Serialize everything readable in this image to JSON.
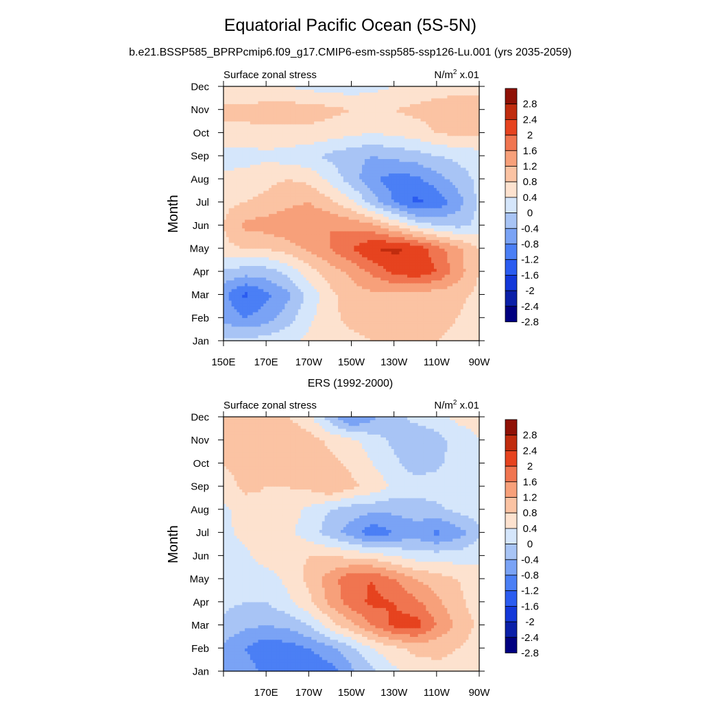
{
  "figure": {
    "title": "Equatorial Pacific Ocean (5S-5N)",
    "subtitle": "b.e21.BSSP585_BPRPcmip6.f09_g17.CMIP6-esm-ssp585-ssp126-Lu.001 (yrs 2035-2059)",
    "second_title": "ERS (1992-2000)"
  },
  "colors": {
    "background": "#ffffff",
    "frame": "#000000",
    "palette": [
      "#000080",
      "#0a1fa8",
      "#1338d9",
      "#2b5cf0",
      "#4b7ff5",
      "#7aa3f5",
      "#a8c4f5",
      "#d5e6fb",
      "#fde2cf",
      "#fbc3a3",
      "#f7a07a",
      "#f07550",
      "#e6431f",
      "#c02c0e",
      "#8f1106"
    ]
  },
  "chart_data": [
    {
      "type": "heatmap",
      "name": "model",
      "left_label": "Surface zonal stress",
      "right_label_main": "N/m",
      "right_label_sup": "2",
      "right_label_tail": " x.01",
      "ylabel": "Month",
      "xlabel": "",
      "x_ticks": [
        "150E",
        "170E",
        "170W",
        "150W",
        "130W",
        "110W",
        "90W"
      ],
      "x_tick_values": [
        150,
        170,
        190,
        210,
        230,
        250,
        270
      ],
      "y_ticks": [
        "Jan",
        "Feb",
        "Mar",
        "Apr",
        "May",
        "Jun",
        "Jul",
        "Aug",
        "Sep",
        "Oct",
        "Nov",
        "Dec"
      ],
      "xlim": [
        150,
        270
      ],
      "ylim": [
        0,
        11
      ],
      "colorbar_levels": [
        -2.8,
        -2.4,
        -2,
        -1.6,
        -1.2,
        -0.8,
        -0.4,
        0,
        0.4,
        0.8,
        1.2,
        1.6,
        2,
        2.4,
        2.8
      ],
      "colorbar_labels": [
        "-2.8",
        "-2.4",
        "-2",
        "-1.6",
        "-1.2",
        "-0.8",
        "-0.4",
        "0",
        "0.4",
        "0.8",
        "1.2",
        "1.6",
        "2",
        "2.4",
        "2.8"
      ],
      "x": [
        150,
        160,
        170,
        180,
        190,
        200,
        210,
        220,
        230,
        240,
        250,
        260,
        270
      ],
      "z": [
        [
          -0.3,
          -0.3,
          -0.2,
          -0.1,
          0.1,
          0.2,
          0.3,
          0.4,
          0.5,
          0.4,
          0.4,
          0.3,
          0.2
        ],
        [
          -0.9,
          -1.2,
          -1.0,
          -0.6,
          -0.1,
          0.3,
          0.5,
          0.6,
          0.6,
          0.5,
          0.5,
          0.4,
          0.2
        ],
        [
          -1.1,
          -1.7,
          -1.3,
          -0.9,
          -0.3,
          0.3,
          0.6,
          0.7,
          0.7,
          0.6,
          0.6,
          0.5,
          0.3
        ],
        [
          -0.5,
          -0.6,
          -0.6,
          -0.3,
          0.2,
          0.6,
          0.9,
          1.3,
          1.7,
          1.9,
          1.6,
          1.0,
          0.4
        ],
        [
          0.3,
          0.4,
          0.4,
          0.6,
          0.9,
          1.2,
          1.6,
          2.0,
          2.1,
          1.9,
          1.4,
          0.9,
          0.4
        ],
        [
          0.4,
          0.9,
          1.0,
          1.1,
          1.2,
          1.2,
          1.1,
          0.9,
          0.4,
          -0.1,
          -0.4,
          -0.5,
          -0.3
        ],
        [
          0.3,
          0.4,
          0.5,
          0.7,
          0.8,
          0.5,
          0.1,
          -0.6,
          -1.2,
          -1.7,
          -1.5,
          -1.0,
          -0.3
        ],
        [
          0.1,
          0.2,
          0.3,
          0.4,
          0.3,
          -0.1,
          -0.6,
          -1.1,
          -1.4,
          -1.3,
          -1.0,
          -0.6,
          -0.3
        ],
        [
          -0.2,
          -0.2,
          -0.1,
          -0.2,
          -0.3,
          -0.5,
          -0.7,
          -0.8,
          -0.7,
          -0.6,
          -0.4,
          -0.3,
          -0.2
        ],
        [
          0.3,
          0.3,
          0.3,
          0.3,
          0.3,
          0.2,
          0.1,
          0.0,
          0.1,
          0.2,
          0.4,
          0.5,
          0.5
        ],
        [
          0.5,
          0.5,
          0.6,
          0.6,
          0.6,
          0.5,
          0.4,
          0.3,
          0.4,
          0.5,
          0.6,
          0.6,
          0.6
        ],
        [
          0.1,
          0.1,
          0.0,
          0.0,
          -0.1,
          -0.2,
          -0.2,
          -0.1,
          0.0,
          0.1,
          0.2,
          0.3,
          0.3
        ]
      ]
    },
    {
      "type": "heatmap",
      "name": "observations",
      "left_label": "Surface zonal stress",
      "right_label_main": "N/m",
      "right_label_sup": "2",
      "right_label_tail": " x.01",
      "ylabel": "Month",
      "xlabel": "",
      "x_ticks": [
        "170E",
        "170W",
        "150W",
        "130W",
        "110W",
        "90W"
      ],
      "x_tick_values": [
        170,
        190,
        210,
        230,
        250,
        270
      ],
      "y_ticks": [
        "Jan",
        "Feb",
        "Mar",
        "Apr",
        "May",
        "Jun",
        "Jul",
        "Aug",
        "Sep",
        "Oct",
        "Nov",
        "Dec"
      ],
      "xlim": [
        150,
        270
      ],
      "ylim": [
        0,
        11
      ],
      "colorbar_levels": [
        -2.8,
        -2.4,
        -2,
        -1.6,
        -1.2,
        -0.8,
        -0.4,
        0,
        0.4,
        0.8,
        1.2,
        1.6,
        2,
        2.4,
        2.8
      ],
      "colorbar_labels": [
        "-2.8",
        "-2.4",
        "-2",
        "-1.6",
        "-1.2",
        "-0.8",
        "-0.4",
        "0",
        "0.4",
        "0.8",
        "1.2",
        "1.6",
        "2",
        "2.4",
        "2.8"
      ],
      "x": [
        150,
        160,
        170,
        180,
        190,
        200,
        210,
        220,
        230,
        240,
        250,
        260,
        270
      ],
      "z": [
        [
          -0.9,
          -1.0,
          -1.3,
          -1.5,
          -1.6,
          -1.4,
          -0.9,
          -0.5,
          -0.1,
          0.2,
          0.3,
          0.3,
          0.2
        ],
        [
          -0.9,
          -1.2,
          -1.5,
          -1.4,
          -1.2,
          -0.9,
          -0.5,
          0.0,
          0.3,
          0.5,
          0.5,
          0.4,
          0.2
        ],
        [
          -0.5,
          -0.7,
          -0.8,
          -0.7,
          -0.4,
          0.2,
          0.7,
          1.2,
          1.7,
          1.8,
          1.2,
          0.7,
          0.3
        ],
        [
          -0.3,
          -0.4,
          -0.4,
          -0.1,
          0.3,
          0.9,
          1.4,
          1.7,
          1.6,
          1.3,
          0.9,
          0.5,
          0.2
        ],
        [
          -0.2,
          -0.3,
          -0.2,
          0.1,
          0.5,
          1.0,
          1.5,
          1.6,
          1.2,
          0.8,
          0.6,
          0.4,
          0.2
        ],
        [
          -0.2,
          -0.1,
          0.2,
          0.3,
          0.4,
          0.4,
          0.3,
          0.2,
          0.0,
          -0.2,
          -0.2,
          -0.2,
          -0.1
        ],
        [
          -0.1,
          0.1,
          0.2,
          0.1,
          -0.2,
          -0.6,
          -1.0,
          -1.5,
          -1.2,
          -1.0,
          -1.3,
          -1.0,
          -0.5
        ],
        [
          -0.1,
          0.2,
          0.3,
          0.2,
          -0.1,
          -0.4,
          -0.6,
          -0.7,
          -0.7,
          -0.6,
          -0.5,
          -0.3,
          -0.2
        ],
        [
          0.2,
          0.5,
          0.4,
          0.4,
          0.5,
          0.8,
          0.5,
          0.3,
          -0.1,
          -0.2,
          -0.2,
          -0.2,
          -0.1
        ],
        [
          0.4,
          0.6,
          0.5,
          0.6,
          0.6,
          0.5,
          0.3,
          0.0,
          -0.3,
          -0.6,
          -0.5,
          -0.2,
          -0.1
        ],
        [
          0.5,
          0.6,
          0.7,
          0.8,
          0.6,
          0.3,
          0.1,
          -0.2,
          -0.5,
          -0.7,
          -0.6,
          -0.2,
          0.0
        ],
        [
          0.4,
          0.4,
          0.5,
          0.4,
          0.1,
          -0.6,
          -1.3,
          -0.9,
          -0.5,
          -0.3,
          -0.1,
          0.1,
          0.1
        ]
      ]
    }
  ]
}
